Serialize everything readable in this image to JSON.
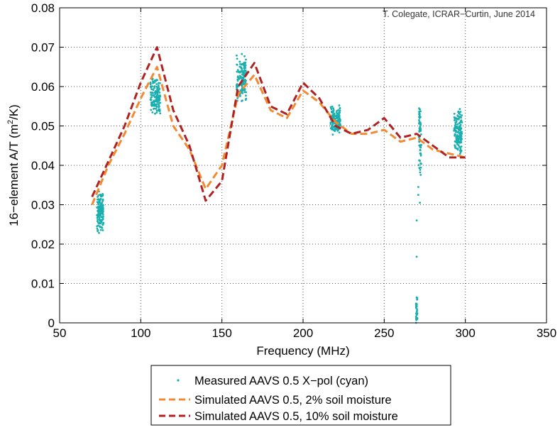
{
  "chart_data": {
    "type": "scatter",
    "title": "",
    "annotation": "T. Colegate, ICRAR−Curtin, June 2014",
    "xlabel": "Frequency (MHz)",
    "ylabel_main": "16−element A/T (m",
    "ylabel_sup": "2",
    "ylabel_end": "/K)",
    "xlim": [
      50,
      350
    ],
    "ylim": [
      0,
      0.08
    ],
    "xticks": [
      50,
      100,
      150,
      200,
      250,
      300,
      350
    ],
    "xtick_labels": [
      "50",
      "100",
      "150",
      "200",
      "250",
      "300",
      "350"
    ],
    "yticks": [
      0,
      0.01,
      0.02,
      0.03,
      0.04,
      0.05,
      0.06,
      0.07,
      0.08
    ],
    "ytick_labels": [
      "0",
      "0.01",
      "0.02",
      "0.03",
      "0.04",
      "0.05",
      "0.06",
      "0.07",
      "0.08"
    ],
    "grid": true,
    "legend_placement": "below",
    "series": [
      {
        "name": "Measured AAVS 0.5 X−pol (cyan)",
        "kind": "points",
        "color": "#1aafaf",
        "clusters": [
          {
            "x": [
              73,
              77
            ],
            "y": [
              0.0228,
              0.0335
            ]
          },
          {
            "x": [
              106,
              112
            ],
            "y": [
              0.0525,
              0.0625
            ]
          },
          {
            "x": [
              159,
              165
            ],
            "y": [
              0.0555,
              0.0688
            ]
          },
          {
            "x": [
              217,
              223
            ],
            "y": [
              0.0475,
              0.0555
            ]
          },
          {
            "x": [
              293,
              298
            ],
            "y": [
              0.0425,
              0.0545
            ]
          }
        ],
        "column_low": {
          "x": 270,
          "y": [
            0.0,
            0.0065
          ]
        },
        "column_high": {
          "x": 272,
          "y": [
            0.0365,
            0.0545
          ]
        },
        "stragglers": [
          {
            "x": 270,
            "y": 0.0168
          },
          {
            "x": 270,
            "y": 0.026
          },
          {
            "x": 271,
            "y": 0.0325
          },
          {
            "x": 272,
            "y": 0.0305
          },
          {
            "x": 271,
            "y": 0.0345
          }
        ]
      },
      {
        "name": "Simulated AAVS 0.5, 2% soil moisture",
        "kind": "line",
        "color": "#f28a32",
        "points": [
          [
            70,
            0.03
          ],
          [
            80,
            0.04
          ],
          [
            90,
            0.048
          ],
          [
            100,
            0.057
          ],
          [
            110,
            0.065
          ],
          [
            120,
            0.05
          ],
          [
            130,
            0.044
          ],
          [
            140,
            0.034
          ],
          [
            150,
            0.04
          ],
          [
            160,
            0.058
          ],
          [
            170,
            0.063
          ],
          [
            180,
            0.054
          ],
          [
            190,
            0.052
          ],
          [
            200,
            0.059
          ],
          [
            210,
            0.056
          ],
          [
            220,
            0.051
          ],
          [
            230,
            0.048
          ],
          [
            240,
            0.048
          ],
          [
            250,
            0.049
          ],
          [
            260,
            0.046
          ],
          [
            270,
            0.047
          ],
          [
            280,
            0.044
          ],
          [
            290,
            0.043
          ],
          [
            300,
            0.042
          ]
        ]
      },
      {
        "name": "Simulated AAVS 0.5, 10% soil moisture",
        "kind": "line",
        "color": "#b02222",
        "points": [
          [
            70,
            0.032
          ],
          [
            80,
            0.041
          ],
          [
            90,
            0.05
          ],
          [
            100,
            0.061
          ],
          [
            110,
            0.07
          ],
          [
            120,
            0.054
          ],
          [
            130,
            0.045
          ],
          [
            140,
            0.031
          ],
          [
            150,
            0.036
          ],
          [
            160,
            0.06
          ],
          [
            170,
            0.066
          ],
          [
            180,
            0.055
          ],
          [
            190,
            0.053
          ],
          [
            200,
            0.061
          ],
          [
            210,
            0.057
          ],
          [
            220,
            0.05
          ],
          [
            230,
            0.048
          ],
          [
            240,
            0.049
          ],
          [
            250,
            0.052
          ],
          [
            260,
            0.047
          ],
          [
            270,
            0.048
          ],
          [
            280,
            0.045
          ],
          [
            290,
            0.042
          ],
          [
            300,
            0.042
          ]
        ]
      }
    ]
  }
}
